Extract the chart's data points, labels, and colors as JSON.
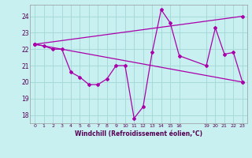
{
  "background_color": "#c8f0f0",
  "grid_color": "#a8dada",
  "line_color": "#aa00aa",
  "marker": "D",
  "markersize": 2.0,
  "linewidth": 0.9,
  "xlabel": "Windchill (Refroidissement éolien,°C)",
  "xlim": [
    -0.5,
    23.5
  ],
  "ylim": [
    17.5,
    24.7
  ],
  "yticks": [
    18,
    19,
    20,
    21,
    22,
    23,
    24
  ],
  "xticks": [
    0,
    1,
    2,
    3,
    4,
    5,
    6,
    7,
    8,
    9,
    10,
    11,
    12,
    13,
    14,
    15,
    16,
    19,
    20,
    21,
    22,
    23
  ],
  "series1_x": [
    0,
    1,
    2,
    3,
    4,
    5,
    6,
    7,
    8,
    9,
    10,
    11,
    12,
    13,
    14,
    15,
    16,
    19,
    20,
    21,
    22,
    23
  ],
  "series1_y": [
    22.3,
    22.2,
    22.0,
    22.0,
    20.6,
    20.3,
    19.85,
    19.85,
    20.2,
    21.0,
    21.0,
    17.8,
    18.5,
    21.8,
    24.4,
    23.6,
    21.6,
    21.0,
    23.3,
    21.7,
    21.8,
    20.0
  ],
  "series2_x": [
    0,
    23
  ],
  "series2_y": [
    22.3,
    24.0
  ],
  "series3_x": [
    0,
    23
  ],
  "series3_y": [
    22.3,
    20.0
  ]
}
